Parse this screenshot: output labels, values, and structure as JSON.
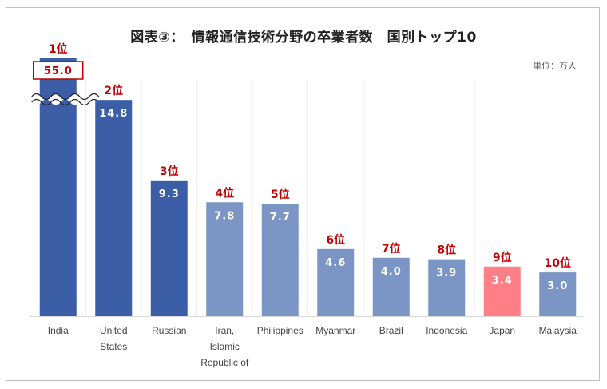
{
  "title": "図表③：　情報通信技術分野の卒業者数　国別トップ10",
  "unit": "単位：万人",
  "colors": {
    "top3": "#3b5ea6",
    "others": "#7b96c4",
    "highlight": "#ff7f86",
    "rank": "#c00000",
    "axis": "#d9d9d9"
  },
  "chart_data": {
    "type": "bar",
    "title": "図表③：　情報通信技術分野の卒業者数　国別トップ10",
    "unit": "単位：万人",
    "categories": [
      [
        "India"
      ],
      [
        "United",
        "States"
      ],
      [
        "Russian"
      ],
      [
        "Iran,",
        "Islamic",
        "Republic of"
      ],
      [
        "Philippines"
      ],
      [
        "Myanmar"
      ],
      [
        "Brazil"
      ],
      [
        "Indonesia"
      ],
      [
        "Japan"
      ],
      [
        "Malaysia"
      ]
    ],
    "values": [
      55.0,
      14.8,
      9.3,
      7.8,
      7.7,
      4.6,
      4.0,
      3.9,
      3.4,
      3.0
    ],
    "value_labels": [
      "55.0",
      "14.8",
      "9.3",
      "7.8",
      "7.7",
      "4.6",
      "4.0",
      "3.9",
      "3.4",
      "3.0"
    ],
    "ranks": [
      "1位",
      "2位",
      "3位",
      "4位",
      "5位",
      "6位",
      "7位",
      "8位",
      "9位",
      "10位"
    ],
    "color_groups": [
      "top3",
      "top3",
      "top3",
      "others",
      "others",
      "others",
      "others",
      "others",
      "highlight",
      "others"
    ],
    "axis_break": true,
    "broken_bar_index": 0,
    "grid": false,
    "legend": "none"
  }
}
